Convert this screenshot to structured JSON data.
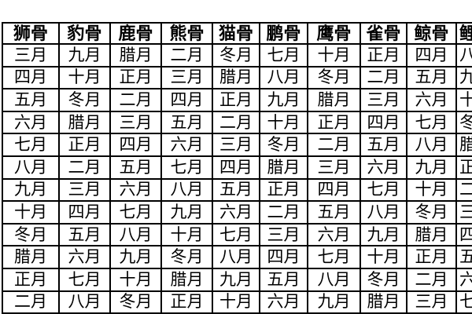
{
  "colors": {
    "background": "#ffffff",
    "table_background": "#ffffff",
    "border": "#000000",
    "text": "#000000"
  },
  "table": {
    "row_count": 12,
    "columns": [
      {
        "header": "狮骨",
        "clipped": false,
        "months": [
          "三月",
          "四月",
          "五月",
          "六月",
          "七月",
          "八月",
          "九月",
          "十月",
          "冬月",
          "腊月",
          "正月",
          "二月"
        ]
      },
      {
        "header": "豹骨",
        "clipped": false,
        "months": [
          "九月",
          "十月",
          "冬月",
          "腊月",
          "正月",
          "二月",
          "三月",
          "四月",
          "五月",
          "六月",
          "七月",
          "八月"
        ]
      },
      {
        "header": "鹿骨",
        "clipped": false,
        "months": [
          "腊月",
          "正月",
          "二月",
          "三月",
          "四月",
          "五月",
          "六月",
          "七月",
          "八月",
          "九月",
          "十月",
          "冬月"
        ]
      },
      {
        "header": "熊骨",
        "clipped": false,
        "months": [
          "二月",
          "三月",
          "四月",
          "五月",
          "六月",
          "七月",
          "八月",
          "九月",
          "十月",
          "冬月",
          "腊月",
          "正月"
        ]
      },
      {
        "header": "猫骨",
        "clipped": false,
        "months": [
          "冬月",
          "腊月",
          "正月",
          "二月",
          "三月",
          "四月",
          "五月",
          "六月",
          "七月",
          "八月",
          "九月",
          "十月"
        ]
      },
      {
        "header": "鹏骨",
        "clipped": false,
        "months": [
          "七月",
          "八月",
          "九月",
          "十月",
          "冬月",
          "腊月",
          "正月",
          "二月",
          "三月",
          "四月",
          "五月",
          "六月"
        ]
      },
      {
        "header": "鹰骨",
        "clipped": false,
        "months": [
          "十月",
          "冬月",
          "腊月",
          "正月",
          "二月",
          "三月",
          "四月",
          "五月",
          "六月",
          "七月",
          "八月",
          "九月"
        ]
      },
      {
        "header": "雀骨",
        "clipped": false,
        "months": [
          "正月",
          "二月",
          "三月",
          "四月",
          "五月",
          "六月",
          "七月",
          "八月",
          "九月",
          "十月",
          "冬月",
          "腊月"
        ]
      },
      {
        "header": "鲸骨",
        "clipped": false,
        "months": [
          "四月",
          "五月",
          "六月",
          "七月",
          "八月",
          "九月",
          "十月",
          "冬月",
          "腊月",
          "正月",
          "二月",
          "三月"
        ]
      },
      {
        "header": "鲤骨",
        "clipped": true,
        "months": [
          "八月",
          "九月",
          "十月",
          "冬月",
          "腊月",
          "正月",
          "二月",
          "三月",
          "四月",
          "五月",
          "六月",
          "七月"
        ]
      }
    ]
  }
}
